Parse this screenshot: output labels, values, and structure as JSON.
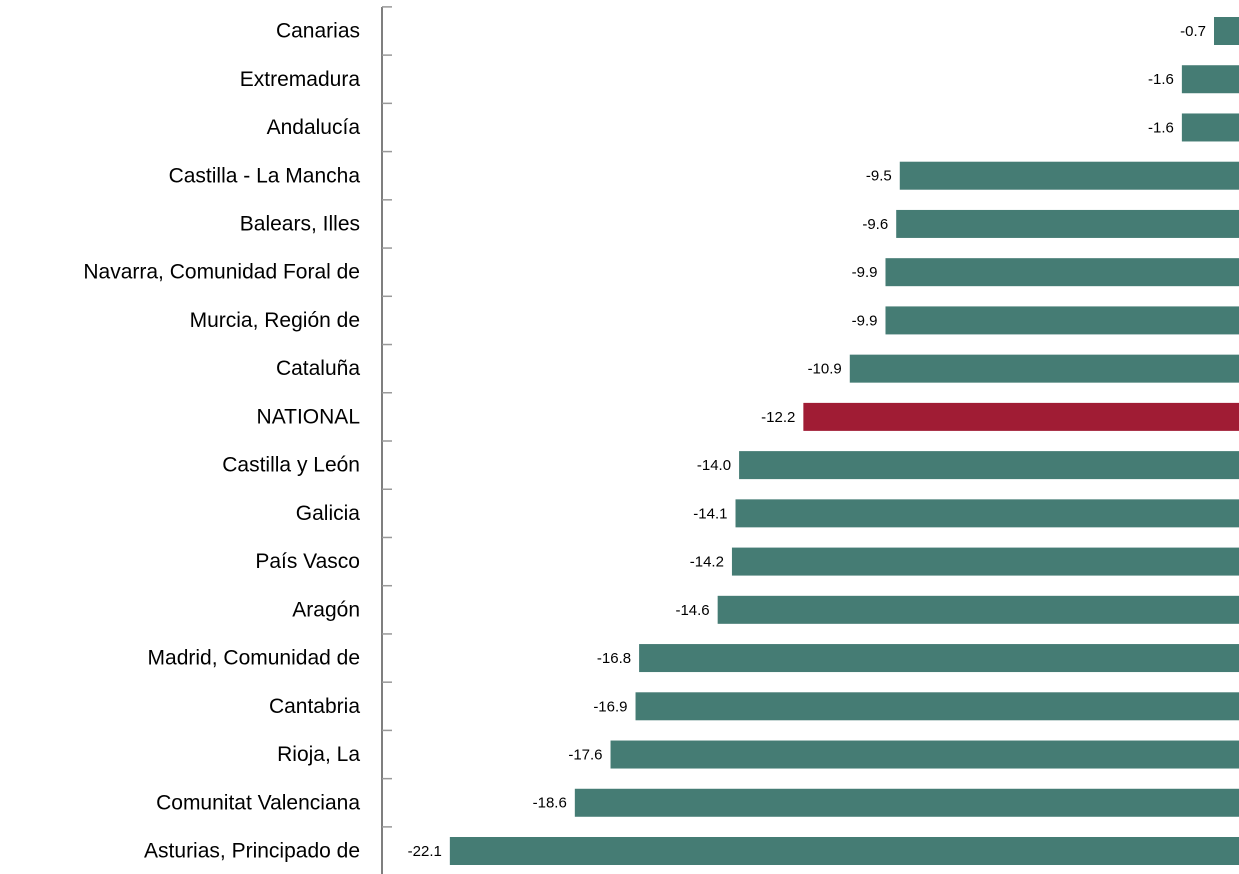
{
  "chart_data": {
    "type": "hbar",
    "categories": [
      "Canarias",
      "Extremadura",
      "Andalucía",
      "Castilla - La Mancha",
      "Balears, Illes",
      "Navarra, Comunidad Foral de",
      "Murcia, Región de",
      "Cataluña",
      "NATIONAL",
      "Castilla y León",
      "Galicia",
      "País Vasco",
      "Aragón",
      "Madrid, Comunidad de",
      "Cantabria",
      "Rioja, La",
      "Comunitat Valenciana",
      "Asturias, Principado de"
    ],
    "values": [
      -0.7,
      -1.6,
      -1.6,
      -9.5,
      -9.6,
      -9.9,
      -9.9,
      -10.9,
      -12.2,
      -14.0,
      -14.1,
      -14.2,
      -14.6,
      -16.8,
      -16.9,
      -17.6,
      -18.6,
      -22.1
    ],
    "value_labels": [
      "-0.7",
      "-1.6",
      "-1.6",
      "-9.5",
      "-9.6",
      "-9.9",
      "-9.9",
      "-10.9",
      "-12.2",
      "-14.0",
      "-14.1",
      "-14.2",
      "-14.6",
      "-16.8",
      "-16.9",
      "-17.6",
      "-18.6",
      "-22.1"
    ],
    "colors": [
      "#457c74",
      "#457c74",
      "#457c74",
      "#457c74",
      "#457c74",
      "#457c74",
      "#457c74",
      "#457c74",
      "#a01c34",
      "#457c74",
      "#457c74",
      "#457c74",
      "#457c74",
      "#457c74",
      "#457c74",
      "#457c74",
      "#457c74",
      "#457c74"
    ],
    "xlim": [
      -24,
      0
    ]
  }
}
